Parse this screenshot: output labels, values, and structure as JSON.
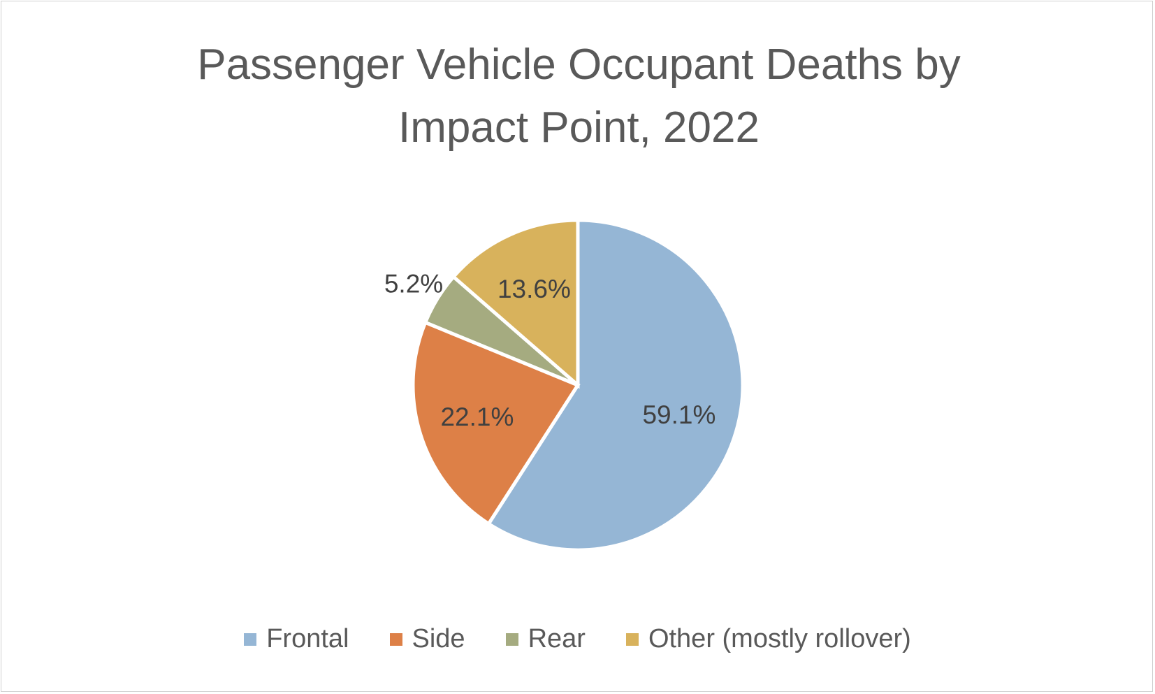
{
  "chart_data": {
    "type": "pie",
    "title": "Passenger Vehicle Occupant Deaths by Impact Point, 2022",
    "title_lines": [
      "Passenger Vehicle Occupant Deaths by",
      "Impact Point, 2022"
    ],
    "categories": [
      "Frontal",
      "Side",
      "Rear",
      "Other (mostly rollover)"
    ],
    "values": [
      59.1,
      22.1,
      5.2,
      13.6
    ],
    "data_labels": [
      "59.1%",
      "22.1%",
      "5.2%",
      "13.6%"
    ],
    "colors": [
      "#95b6d5",
      "#dd8047",
      "#a5ab80",
      "#d8b25c"
    ],
    "start": "12 o'clock, clockwise",
    "legend_position": "bottom"
  }
}
